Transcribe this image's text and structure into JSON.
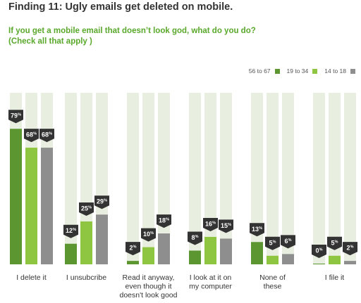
{
  "title": "Finding 11: Ugly emails get deleted on mobile.",
  "subtitle_lines": [
    "If you get a mobile email that doesn’t look god, what do you do?",
    "(Check all that apply )"
  ],
  "colors": {
    "dark_green": "#5b9630",
    "light_green": "#8fc641",
    "gray": "#8e8e8e",
    "track": "#e9efe0",
    "badge": "#333333",
    "label_text": "#333333",
    "title_text": "#333333",
    "subtitle_text": "#5aa82c"
  },
  "chart_data": {
    "type": "bar",
    "title": "",
    "xlabel": "",
    "ylabel": "",
    "ylim": [
      0,
      100
    ],
    "grid": false,
    "legend_placement": "top-right",
    "categories": [
      [
        "I delete it"
      ],
      [
        "I unsubcribe"
      ],
      [
        "Read it anyway,",
        "even though it",
        "doesn't look good"
      ],
      [
        "I look at it on",
        "my computer"
      ],
      [
        "None of",
        "these"
      ],
      [
        "I file it"
      ]
    ],
    "series": [
      {
        "name": "56 to 67",
        "color": "#5b9630",
        "values": [
          79,
          12,
          2,
          8,
          13,
          0
        ]
      },
      {
        "name": "19 to 34",
        "color": "#8fc641",
        "values": [
          68,
          25,
          10,
          16,
          5,
          5
        ]
      },
      {
        "name": "14 to 18",
        "color": "#8e8e8e",
        "values": [
          68,
          29,
          18,
          15,
          6,
          2
        ]
      }
    ],
    "value_suffix": "%"
  }
}
